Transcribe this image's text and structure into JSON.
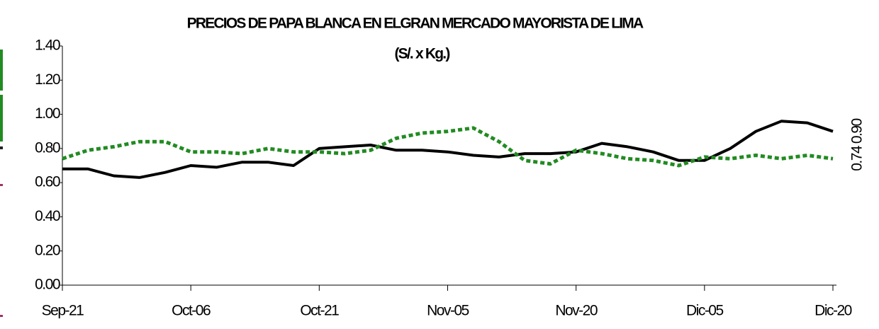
{
  "chart_data": {
    "type": "line",
    "title": "PRECIOS DE PAPA BLANCA EN ELGRAN MERCADO MAYORISTA DE LIMA",
    "subtitle": "(S/. x Kg.)",
    "categories": [
      "Sep-21",
      null,
      null,
      null,
      null,
      "Oct-06",
      null,
      null,
      null,
      null,
      "Oct-21",
      null,
      null,
      null,
      null,
      "Nov-05",
      null,
      null,
      null,
      null,
      "Nov-20",
      null,
      null,
      null,
      null,
      "Dic-05",
      null,
      null,
      null,
      null,
      "Dic-20"
    ],
    "series": [
      {
        "color": "#000000",
        "dash": "solid",
        "end_label": "0.90",
        "values": [
          0.68,
          0.68,
          0.64,
          0.63,
          0.66,
          0.7,
          0.69,
          0.72,
          0.72,
          0.7,
          0.8,
          0.81,
          0.82,
          0.79,
          0.79,
          0.78,
          0.76,
          0.75,
          0.77,
          0.77,
          0.78,
          0.83,
          0.81,
          0.78,
          0.73,
          0.73,
          0.8,
          0.9,
          0.96,
          0.95,
          0.9
        ]
      },
      {
        "color": "#228b22",
        "dash": "dotted",
        "end_label": "0.74",
        "values": [
          0.74,
          0.79,
          0.81,
          0.84,
          0.84,
          0.78,
          0.78,
          0.77,
          0.8,
          0.78,
          0.78,
          0.77,
          0.79,
          0.86,
          0.89,
          0.9,
          0.92,
          0.84,
          0.73,
          0.71,
          0.79,
          0.77,
          0.74,
          0.73,
          0.7,
          0.75,
          0.74,
          0.76,
          0.74,
          0.76,
          0.74
        ]
      }
    ],
    "ylim": [
      0,
      1.4
    ],
    "yticks": [
      {
        "value": 0,
        "label": "0.00"
      },
      {
        "value": 0.2,
        "label": "0.20"
      },
      {
        "value": 0.4,
        "label": "0.40"
      },
      {
        "value": 0.6,
        "label": "0.60"
      },
      {
        "value": 0.8,
        "label": "0.80"
      },
      {
        "value": 1.0,
        "label": "1.00"
      },
      {
        "value": 1.2,
        "label": "1.20"
      },
      {
        "value": 1.4,
        "label": "1.40"
      }
    ],
    "grid": false
  }
}
